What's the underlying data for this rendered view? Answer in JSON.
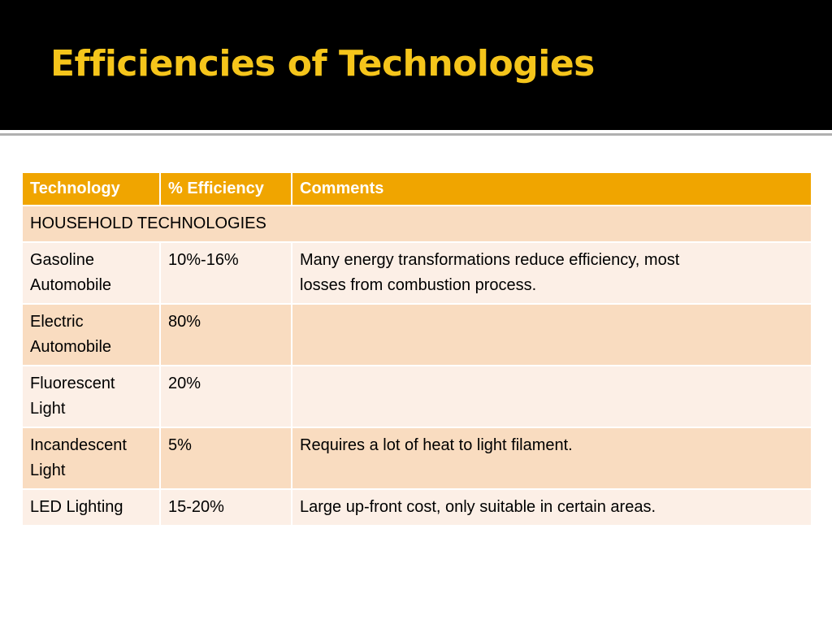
{
  "slide": {
    "title": "Efficiencies of Technologies"
  },
  "table": {
    "headers": [
      "Technology",
      "% Efficiency",
      "Comments"
    ],
    "section_label": "HOUSEHOLD TECHNOLOGIES",
    "rows": [
      {
        "technology": [
          "Gasoline",
          "Automobile"
        ],
        "efficiency": "10%-16%",
        "comments": [
          "Many energy transformations  reduce efficiency, most",
          "losses from combustion process."
        ]
      },
      {
        "technology": [
          "Electric",
          "Automobile"
        ],
        "efficiency": "80%",
        "comments": [
          "",
          ""
        ]
      },
      {
        "technology": [
          "Fluorescent",
          "Light"
        ],
        "efficiency": "20%",
        "comments": [
          "",
          ""
        ]
      },
      {
        "technology": [
          "Incandescent",
          "Light"
        ],
        "efficiency": "5%",
        "comments": [
          "Requires a lot of heat to light filament.",
          ""
        ]
      },
      {
        "technology": [
          "LED Lighting",
          ""
        ],
        "efficiency": "15-20%",
        "comments": [
          "Large up-front cost, only suitable in certain areas.",
          ""
        ]
      }
    ]
  },
  "colors": {
    "title_text": "#f5c51b",
    "title_bar": "#000000",
    "header_fill": "#f0a500",
    "row_dark": "#f9dcc0",
    "row_light": "#fcefe6"
  }
}
